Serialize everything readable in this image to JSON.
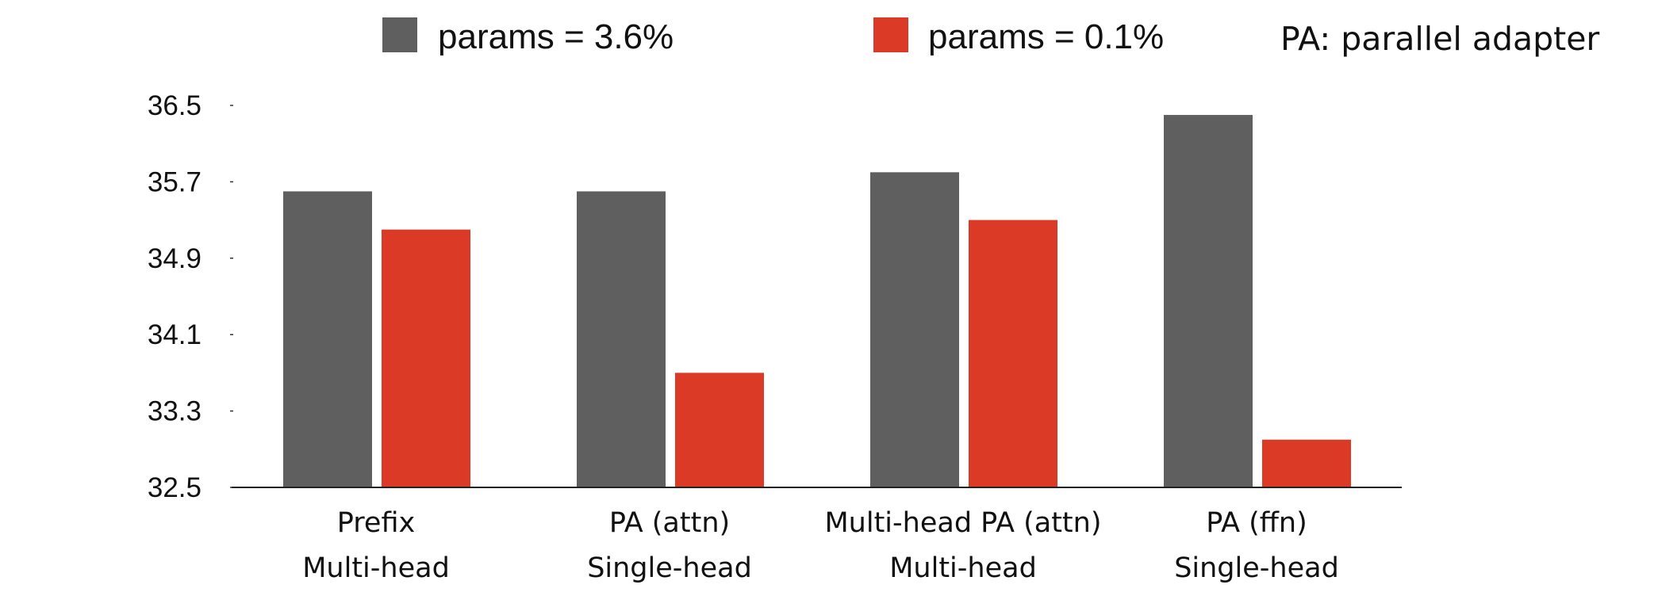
{
  "chart_data": {
    "type": "bar",
    "title": "",
    "xlabel": "",
    "ylabel": "",
    "ylim": [
      32.5,
      36.5
    ],
    "yticks": [
      "36.5",
      "35.7",
      "34.9",
      "34.1",
      "33.3",
      "32.5"
    ],
    "categories": [
      {
        "line1": "Prefix",
        "line2": "Multi-head"
      },
      {
        "line1": "PA (attn)",
        "line2": "Single-head"
      },
      {
        "line1": "Multi-head PA (attn)",
        "line2": "Multi-head"
      },
      {
        "line1": "PA (ffn)",
        "line2": "Single-head"
      }
    ],
    "series": [
      {
        "name": "params = 3.6%",
        "color": "#5f5f5f",
        "values": [
          35.6,
          35.6,
          35.8,
          36.4
        ]
      },
      {
        "name": "params = 0.1%",
        "color": "#db3a27",
        "values": [
          35.2,
          33.7,
          35.3,
          33.0
        ]
      }
    ],
    "legend_position": "top",
    "grid": false,
    "note": "PA: parallel adapter"
  }
}
